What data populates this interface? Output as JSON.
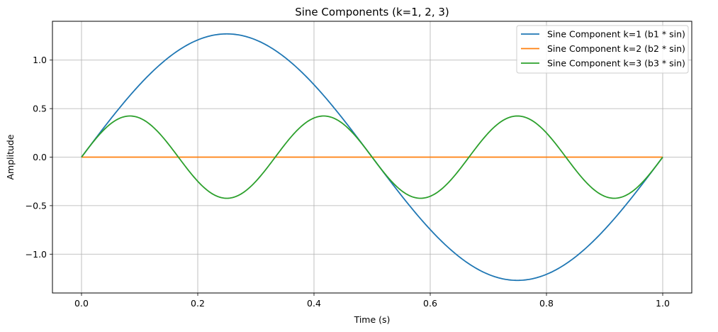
{
  "chart_data": {
    "type": "line",
    "title": "Sine Components (k=1, 2, 3)",
    "xlabel": "Time (s)",
    "ylabel": "Amplitude",
    "xlim": [
      -0.05,
      1.05
    ],
    "ylim": [
      -1.4,
      1.4
    ],
    "xticks": [
      0.0,
      0.2,
      0.4,
      0.6,
      0.8,
      1.0
    ],
    "xtick_labels": [
      "0.0",
      "0.2",
      "0.4",
      "0.6",
      "0.8",
      "1.0"
    ],
    "yticks": [
      -1.0,
      -0.5,
      0.0,
      0.5,
      1.0
    ],
    "ytick_labels": [
      "−1.0",
      "−0.5",
      "0.0",
      "0.5",
      "1.0"
    ],
    "grid": true,
    "legend_position": "top-right",
    "x_range": [
      0.0,
      1.0
    ],
    "series": [
      {
        "name": "Sine Component k=1 (b1 * sin)",
        "amplitude": 1.27,
        "k": 1,
        "color": "#1f77b4"
      },
      {
        "name": "Sine Component k=2 (b2 * sin)",
        "amplitude": 0.0,
        "k": 2,
        "color": "#ff7f0e"
      },
      {
        "name": "Sine Component k=3 (b3 * sin)",
        "amplitude": 0.424,
        "k": 3,
        "color": "#2ca02c"
      }
    ]
  }
}
